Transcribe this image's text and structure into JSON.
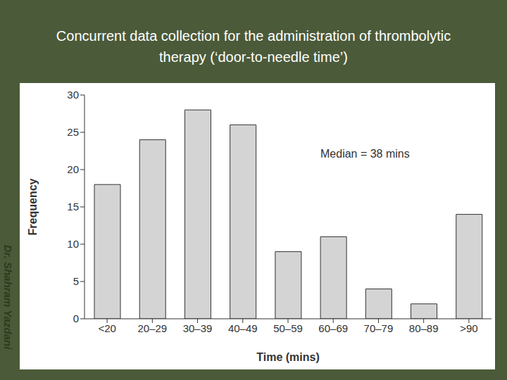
{
  "chart_data": {
    "type": "bar",
    "title": "Concurrent data collection for the administration of thrombolytic therapy (‘door-to-needle time’)",
    "x_label": "Time (mins)",
    "y_label": "Frequency",
    "categories": [
      "<20",
      "20–29",
      "30–39",
      "40–49",
      "50–59",
      "60–69",
      "70–79",
      "80–89",
      ">90"
    ],
    "values": [
      18,
      24,
      28,
      26,
      9,
      11,
      4,
      2,
      14
    ],
    "color": "#d4d4d4",
    "ylim": [
      0,
      30
    ],
    "yticks": [
      0,
      5,
      10,
      15,
      20,
      25,
      30
    ],
    "grid": false,
    "annotation": "Median = 38 mins",
    "watermark": "Dr. Shahram Yazdani"
  }
}
